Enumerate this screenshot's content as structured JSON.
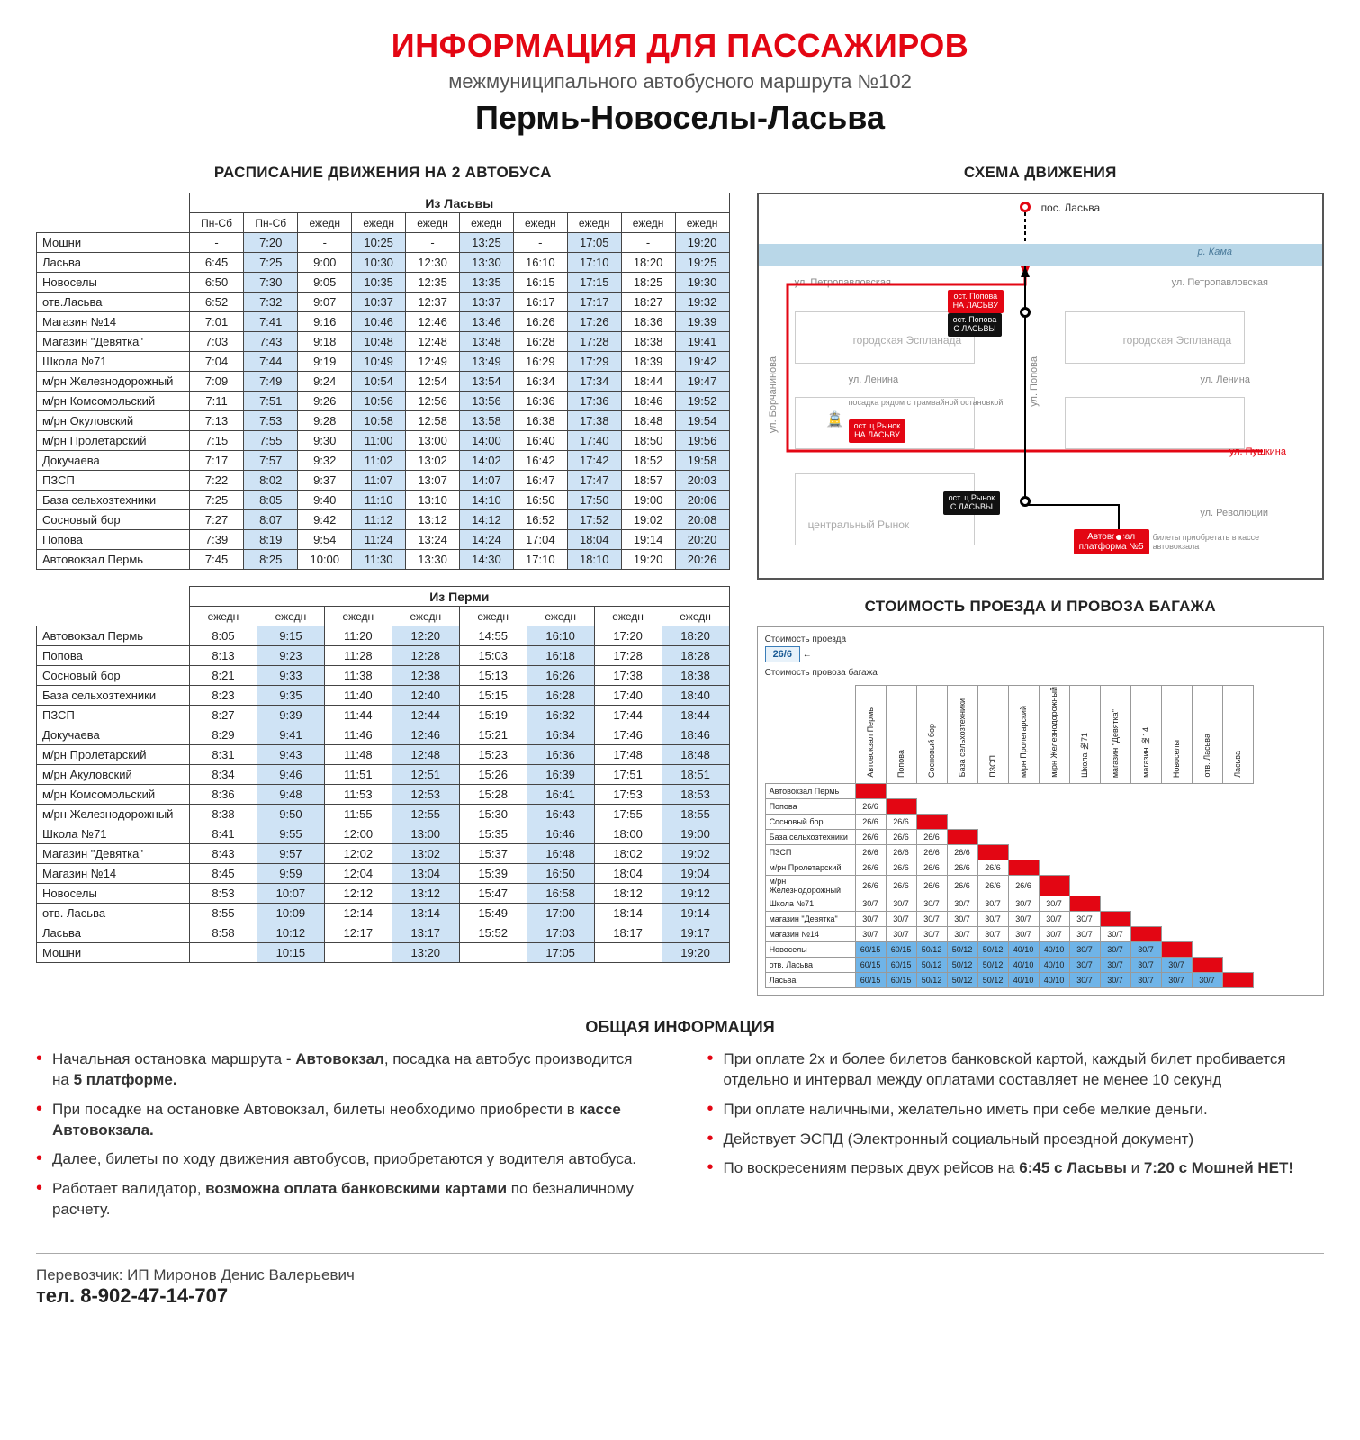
{
  "header": {
    "title": "ИНФОРМАЦИЯ ДЛЯ ПАССАЖИРОВ",
    "subtitle": "межмуниципального автобусного маршрута №102",
    "route": "Пермь-Новоселы-Ласьва"
  },
  "schedule": {
    "section_title": "РАСПИСАНИЕ ДВИЖЕНИЯ НА 2 АВТОБУСА",
    "table1": {
      "title": "Из Ласьвы",
      "headers": [
        "Пн-Сб",
        "Пн-Сб",
        "ежедн",
        "ежедн",
        "ежедн",
        "ежедн",
        "ежедн",
        "ежедн",
        "ежедн",
        "ежедн"
      ],
      "shaded_cols": [
        1,
        3,
        5,
        7,
        9
      ],
      "rows": [
        {
          "stop": "Мошни",
          "t": [
            "-",
            "7:20",
            "-",
            "10:25",
            "-",
            "13:25",
            "-",
            "17:05",
            "-",
            "19:20"
          ]
        },
        {
          "stop": "Ласьва",
          "t": [
            "6:45",
            "7:25",
            "9:00",
            "10:30",
            "12:30",
            "13:30",
            "16:10",
            "17:10",
            "18:20",
            "19:25"
          ]
        },
        {
          "stop": "Новоселы",
          "t": [
            "6:50",
            "7:30",
            "9:05",
            "10:35",
            "12:35",
            "13:35",
            "16:15",
            "17:15",
            "18:25",
            "19:30"
          ]
        },
        {
          "stop": "отв.Ласьва",
          "t": [
            "6:52",
            "7:32",
            "9:07",
            "10:37",
            "12:37",
            "13:37",
            "16:17",
            "17:17",
            "18:27",
            "19:32"
          ]
        },
        {
          "stop": "Магазин №14",
          "t": [
            "7:01",
            "7:41",
            "9:16",
            "10:46",
            "12:46",
            "13:46",
            "16:26",
            "17:26",
            "18:36",
            "19:39"
          ]
        },
        {
          "stop": "Магазин \"Девятка\"",
          "t": [
            "7:03",
            "7:43",
            "9:18",
            "10:48",
            "12:48",
            "13:48",
            "16:28",
            "17:28",
            "18:38",
            "19:41"
          ]
        },
        {
          "stop": "Школа №71",
          "t": [
            "7:04",
            "7:44",
            "9:19",
            "10:49",
            "12:49",
            "13:49",
            "16:29",
            "17:29",
            "18:39",
            "19:42"
          ]
        },
        {
          "stop": "м/рн Железнодорожный",
          "t": [
            "7:09",
            "7:49",
            "9:24",
            "10:54",
            "12:54",
            "13:54",
            "16:34",
            "17:34",
            "18:44",
            "19:47"
          ]
        },
        {
          "stop": "м/рн Комсомольский",
          "t": [
            "7:11",
            "7:51",
            "9:26",
            "10:56",
            "12:56",
            "13:56",
            "16:36",
            "17:36",
            "18:46",
            "19:52"
          ]
        },
        {
          "stop": "м/рн Окуловский",
          "t": [
            "7:13",
            "7:53",
            "9:28",
            "10:58",
            "12:58",
            "13:58",
            "16:38",
            "17:38",
            "18:48",
            "19:54"
          ]
        },
        {
          "stop": "м/рн Пролетарский",
          "t": [
            "7:15",
            "7:55",
            "9:30",
            "11:00",
            "13:00",
            "14:00",
            "16:40",
            "17:40",
            "18:50",
            "19:56"
          ]
        },
        {
          "stop": "Докучаева",
          "t": [
            "7:17",
            "7:57",
            "9:32",
            "11:02",
            "13:02",
            "14:02",
            "16:42",
            "17:42",
            "18:52",
            "19:58"
          ]
        },
        {
          "stop": "ПЗСП",
          "t": [
            "7:22",
            "8:02",
            "9:37",
            "11:07",
            "13:07",
            "14:07",
            "16:47",
            "17:47",
            "18:57",
            "20:03"
          ]
        },
        {
          "stop": "База сельхозтехники",
          "t": [
            "7:25",
            "8:05",
            "9:40",
            "11:10",
            "13:10",
            "14:10",
            "16:50",
            "17:50",
            "19:00",
            "20:06"
          ]
        },
        {
          "stop": "Сосновый бор",
          "t": [
            "7:27",
            "8:07",
            "9:42",
            "11:12",
            "13:12",
            "14:12",
            "16:52",
            "17:52",
            "19:02",
            "20:08"
          ]
        },
        {
          "stop": "Попова",
          "t": [
            "7:39",
            "8:19",
            "9:54",
            "11:24",
            "13:24",
            "14:24",
            "17:04",
            "18:04",
            "19:14",
            "20:20"
          ]
        },
        {
          "stop": "Автовокзал Пермь",
          "t": [
            "7:45",
            "8:25",
            "10:00",
            "11:30",
            "13:30",
            "14:30",
            "17:10",
            "18:10",
            "19:20",
            "20:26"
          ]
        }
      ]
    },
    "table2": {
      "title": "Из Перми",
      "headers": [
        "ежедн",
        "ежедн",
        "ежедн",
        "ежедн",
        "ежедн",
        "ежедн",
        "ежедн",
        "ежедн"
      ],
      "shaded_cols": [
        1,
        3,
        5,
        7
      ],
      "rows": [
        {
          "stop": "Автовокзал Пермь",
          "t": [
            "8:05",
            "9:15",
            "11:20",
            "12:20",
            "14:55",
            "16:10",
            "17:20",
            "18:20"
          ]
        },
        {
          "stop": "Попова",
          "t": [
            "8:13",
            "9:23",
            "11:28",
            "12:28",
            "15:03",
            "16:18",
            "17:28",
            "18:28"
          ]
        },
        {
          "stop": "Сосновый бор",
          "t": [
            "8:21",
            "9:33",
            "11:38",
            "12:38",
            "15:13",
            "16:26",
            "17:38",
            "18:38"
          ]
        },
        {
          "stop": "База сельхозтехники",
          "t": [
            "8:23",
            "9:35",
            "11:40",
            "12:40",
            "15:15",
            "16:28",
            "17:40",
            "18:40"
          ]
        },
        {
          "stop": "ПЗСП",
          "t": [
            "8:27",
            "9:39",
            "11:44",
            "12:44",
            "15:19",
            "16:32",
            "17:44",
            "18:44"
          ]
        },
        {
          "stop": "Докучаева",
          "t": [
            "8:29",
            "9:41",
            "11:46",
            "12:46",
            "15:21",
            "16:34",
            "17:46",
            "18:46"
          ]
        },
        {
          "stop": "м/рн Пролетарский",
          "t": [
            "8:31",
            "9:43",
            "11:48",
            "12:48",
            "15:23",
            "16:36",
            "17:48",
            "18:48"
          ]
        },
        {
          "stop": "м/рн Акуловский",
          "t": [
            "8:34",
            "9:46",
            "11:51",
            "12:51",
            "15:26",
            "16:39",
            "17:51",
            "18:51"
          ]
        },
        {
          "stop": "м/рн Комсомольский",
          "t": [
            "8:36",
            "9:48",
            "11:53",
            "12:53",
            "15:28",
            "16:41",
            "17:53",
            "18:53"
          ]
        },
        {
          "stop": "м/рн Железнодорожный",
          "t": [
            "8:38",
            "9:50",
            "11:55",
            "12:55",
            "15:30",
            "16:43",
            "17:55",
            "18:55"
          ]
        },
        {
          "stop": "Школа №71",
          "t": [
            "8:41",
            "9:55",
            "12:00",
            "13:00",
            "15:35",
            "16:46",
            "18:00",
            "19:00"
          ]
        },
        {
          "stop": "Магазин \"Девятка\"",
          "t": [
            "8:43",
            "9:57",
            "12:02",
            "13:02",
            "15:37",
            "16:48",
            "18:02",
            "19:02"
          ]
        },
        {
          "stop": "Магазин №14",
          "t": [
            "8:45",
            "9:59",
            "12:04",
            "13:04",
            "15:39",
            "16:50",
            "18:04",
            "19:04"
          ]
        },
        {
          "stop": "Новоселы",
          "t": [
            "8:53",
            "10:07",
            "12:12",
            "13:12",
            "15:47",
            "16:58",
            "18:12",
            "19:12"
          ]
        },
        {
          "stop": "отв. Ласьва",
          "t": [
            "8:55",
            "10:09",
            "12:14",
            "13:14",
            "15:49",
            "17:00",
            "18:14",
            "19:14"
          ]
        },
        {
          "stop": "Ласьва",
          "t": [
            "8:58",
            "10:12",
            "12:17",
            "13:17",
            "15:52",
            "17:03",
            "18:17",
            "19:17"
          ]
        },
        {
          "stop": "Мошни",
          "t": [
            "",
            "10:15",
            "",
            "13:20",
            "",
            "17:05",
            "",
            "19:20"
          ]
        }
      ]
    }
  },
  "map": {
    "section_title": "СХЕМА ДВИЖЕНИЯ",
    "poselok": "пос. Ласьва",
    "river": "р. Кама",
    "streets": {
      "petro": "ул. Петропавловская",
      "lenina": "ул. Ленина",
      "pushkina": "ул. Пушкина",
      "revol": "ул. Революции",
      "borcha": "ул. Борчанинова",
      "popova": "ул. Попова"
    },
    "esplanada": "городская Эспланада",
    "rynok": "центральный Рынок",
    "badges": {
      "popova_to": "ост. Попова\nНА ЛАСЬВУ",
      "popova_from": "ост. Попова\nС ЛАСЬВЫ",
      "rynok_to": "ост. ц.Рынок\nНА ЛАСЬВУ",
      "rynok_from": "ост. ц.Рынок\nС ЛАСЬВЫ",
      "avtovokzal": "Автовокзал\nплатформа №5",
      "tram": "посадка рядом с трамвайной остановкой"
    },
    "tickets_note": "билеты приобретать в кассе автовокзала"
  },
  "fare": {
    "section_title": "СТОИМОСТЬ ПРОЕЗДА И ПРОВОЗА БАГАЖА",
    "key_label1": "Стоимость проезда",
    "key_label2": "Стоимость провоза багажа",
    "key_price": "26/6",
    "arrow": "←",
    "stops": [
      "Автовокзал Пермь",
      "Попова",
      "Сосновый бор",
      "База сельхозтехники",
      "ПЗСП",
      "м/рн Пролетарский",
      "м/рн Железнодорожный",
      "Школа №71",
      "магазин \"Девятка\"",
      "магазин №14",
      "Новоселы",
      "отв. Ласьва",
      "Ласьва"
    ],
    "matrix": [
      [],
      [
        "26/6"
      ],
      [
        "26/6",
        "26/6"
      ],
      [
        "26/6",
        "26/6",
        "26/6"
      ],
      [
        "26/6",
        "26/6",
        "26/6",
        "26/6"
      ],
      [
        "26/6",
        "26/6",
        "26/6",
        "26/6",
        "26/6"
      ],
      [
        "26/6",
        "26/6",
        "26/6",
        "26/6",
        "26/6",
        "26/6"
      ],
      [
        "30/7",
        "30/7",
        "30/7",
        "30/7",
        "30/7",
        "30/7",
        "30/7"
      ],
      [
        "30/7",
        "30/7",
        "30/7",
        "30/7",
        "30/7",
        "30/7",
        "30/7",
        "30/7"
      ],
      [
        "30/7",
        "30/7",
        "30/7",
        "30/7",
        "30/7",
        "30/7",
        "30/7",
        "30/7",
        "30/7"
      ],
      [
        "60/15",
        "60/15",
        "50/12",
        "50/12",
        "50/12",
        "40/10",
        "40/10",
        "30/7",
        "30/7",
        "30/7"
      ],
      [
        "60/15",
        "60/15",
        "50/12",
        "50/12",
        "50/12",
        "40/10",
        "40/10",
        "30/7",
        "30/7",
        "30/7",
        "30/7"
      ],
      [
        "60/15",
        "60/15",
        "50/12",
        "50/12",
        "50/12",
        "40/10",
        "40/10",
        "30/7",
        "30/7",
        "30/7",
        "30/7",
        "30/7"
      ]
    ],
    "blue_threshold_row": 10
  },
  "general": {
    "title": "ОБЩАЯ ИНФОРМАЦИЯ",
    "left": [
      "Начальная остановка маршрута - <b>Автовокзал</b>, посадка на автобус производится на <b>5 платформе.</b>",
      "При посадке на остановке Автовокзал, билеты необходимо приобрести в <b>кассе Автовокзала.</b>",
      "Далее, билеты по ходу движения автобусов, приобретаются у водителя автобуса.",
      "Работает валидатор, <b>возможна оплата банковскими картами</b> по безналичному расчету."
    ],
    "right": [
      "При оплате 2х и более билетов банковской картой, каждый билет пробивается отдельно и интервал между оплатами составляет не менее 10 секунд",
      "При оплате наличными, желательно иметь при себе мелкие деньги.",
      "Действует ЭСПД (Электронный социальный проездной документ)",
      "По воскресениям первых двух рейсов на <b>6:45 с Ласьвы</b> и <b>7:20 с Мошней НЕТ!</b>"
    ]
  },
  "footer": {
    "carrier": "Перевозчик: ИП Миронов Денис Валерьевич",
    "tel_label": "тел.",
    "tel": "8-902-47-14-707"
  }
}
